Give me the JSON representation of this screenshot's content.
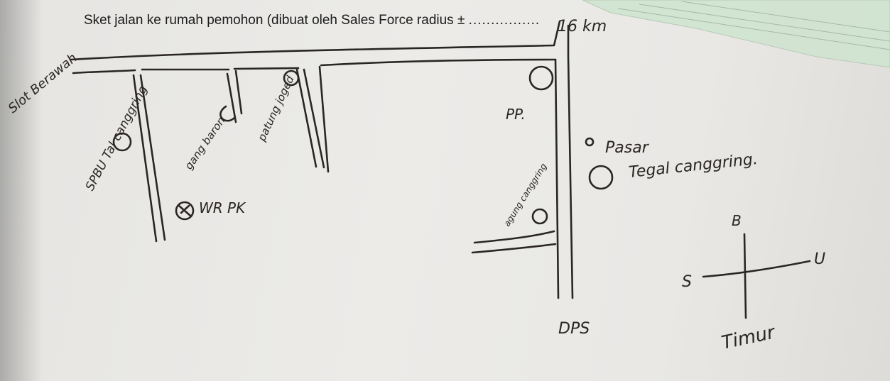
{
  "header": {
    "text": "Sket jalan ke rumah pemohon (dibuat oleh Sales Force radius ±",
    "dots": "................"
  },
  "labels": {
    "top_right_km": "16 km",
    "left_road": "Slot Berawah",
    "spbu": "SPBU Tal canggring",
    "gang": "gang baron",
    "patung": "patung joged",
    "wr_pk": "WR PK",
    "pp": "PP.",
    "pasar": "Pasar",
    "tegal": "Tegal canggring.",
    "agung": "agung canggring",
    "dps": "DPS",
    "compass_b": "B",
    "compass_u": "U",
    "compass_s": "S",
    "compass_t": "Timur"
  },
  "colors": {
    "ink": "#2a2624",
    "paper": "#e9e8e5",
    "green_sheet": "#d3e6d3"
  }
}
